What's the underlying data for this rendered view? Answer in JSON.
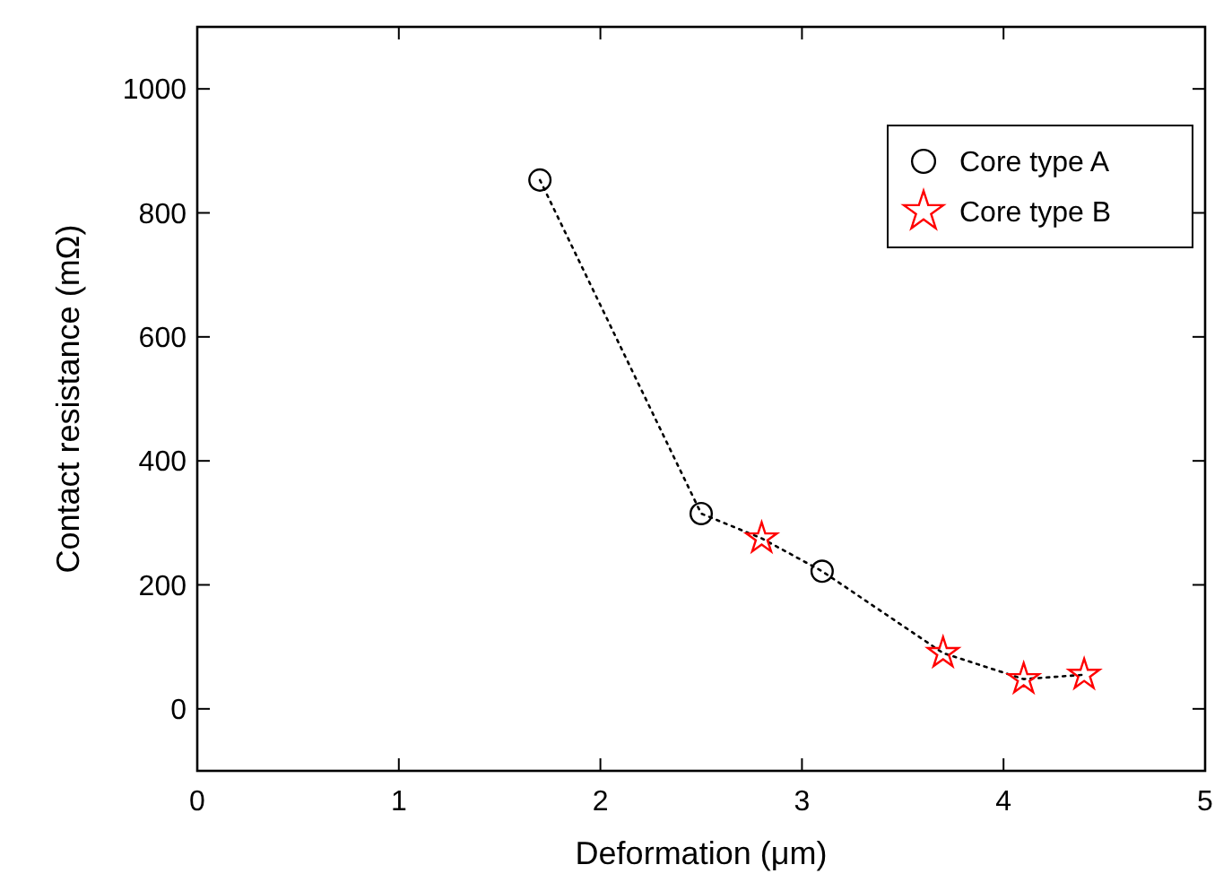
{
  "chart_data": {
    "type": "scatter",
    "xlabel": "Deformation (μm)",
    "ylabel": "Contact resistance (mΩ)",
    "xlim": [
      0,
      5
    ],
    "xticks": [
      0,
      1,
      2,
      3,
      4,
      5
    ],
    "ylim": [
      -100,
      1100
    ],
    "yticks": [
      0,
      200,
      400,
      600,
      800,
      1000
    ],
    "grid": false,
    "legend": "top right",
    "series": [
      {
        "type": "line",
        "color": "#000000",
        "line_style": "dotted",
        "marker": "none",
        "x": [
          1.7,
          2.5,
          2.8,
          3.1,
          3.7,
          4.1,
          4.4
        ],
        "values": [
          853,
          315,
          275,
          222,
          90,
          48,
          55
        ]
      },
      {
        "name": "Core type A",
        "color": "#000000",
        "marker": "circle",
        "x": [
          1.7,
          2.5,
          3.1
        ],
        "values": [
          853,
          315,
          222
        ]
      },
      {
        "name": "Core type B",
        "color": "#ff0000",
        "marker": "star",
        "x": [
          2.8,
          3.7,
          4.1,
          4.4
        ],
        "values": [
          275,
          90,
          48,
          55
        ]
      }
    ]
  }
}
